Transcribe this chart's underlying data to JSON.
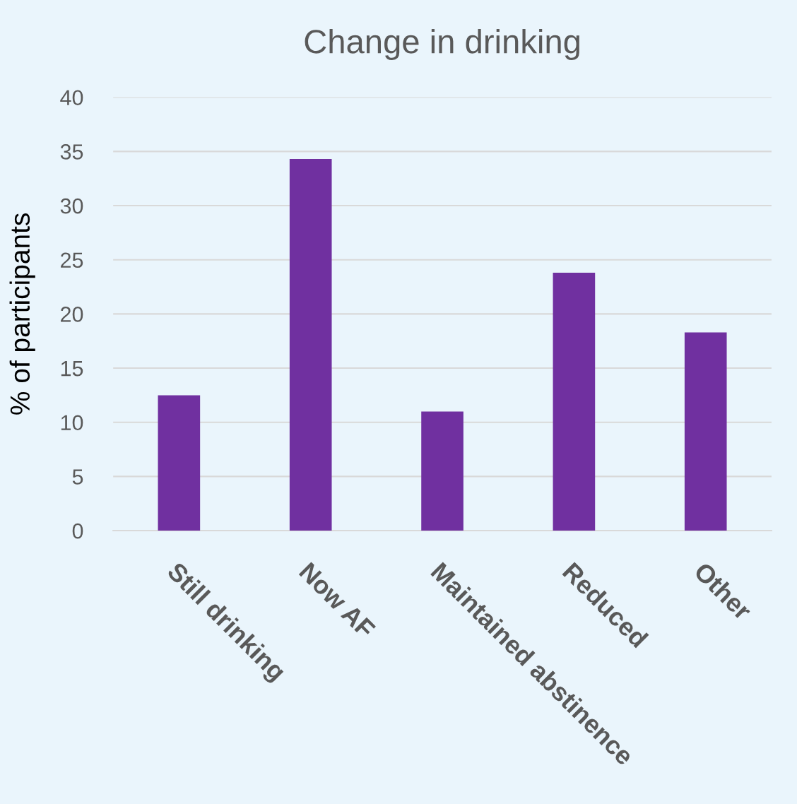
{
  "chart_data": {
    "type": "bar",
    "title": "Change in drinking",
    "ylabel": "% of participants",
    "categories": [
      "Still drinking",
      "Now AF",
      "Maintained abstinence",
      "Reduced",
      "Other"
    ],
    "values": [
      12.5,
      34.3,
      11.0,
      23.8,
      18.3
    ],
    "color": "#7030a0",
    "ylim": [
      0,
      40
    ],
    "yticks": [
      0,
      5,
      10,
      15,
      20,
      25,
      30,
      35,
      40
    ],
    "grid": "y",
    "legend": false
  }
}
